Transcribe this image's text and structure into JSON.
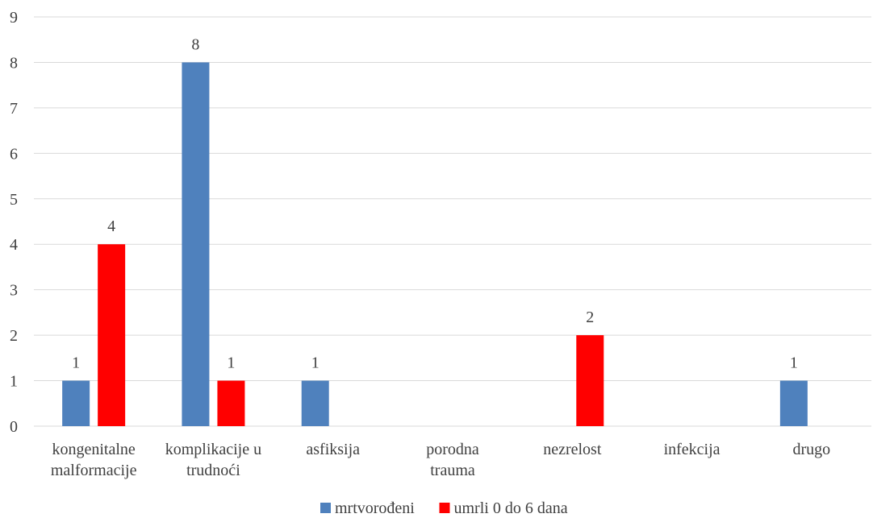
{
  "chart_data": {
    "type": "bar",
    "categories": [
      [
        "kongenitalne",
        "malformacije"
      ],
      [
        "komplikacije u",
        "trudnoći"
      ],
      [
        "asfiksija"
      ],
      [
        "porodna",
        "trauma"
      ],
      [
        "nezrelost"
      ],
      [
        "infekcija"
      ],
      [
        "drugo"
      ]
    ],
    "series": [
      {
        "name": "mrtvorođeni",
        "color": "#4f81bd",
        "values": [
          1,
          8,
          1,
          null,
          null,
          null,
          1
        ]
      },
      {
        "name": "umrli 0 do 6 dana",
        "color": "#ff0000",
        "values": [
          4,
          1,
          null,
          null,
          2,
          null,
          null
        ]
      }
    ],
    "yticks": [
      "0",
      "1",
      "2",
      "3",
      "4",
      "5",
      "6",
      "7",
      "8",
      "9"
    ],
    "ylim": [
      0,
      9
    ],
    "grid": true,
    "legend_position": "bottom"
  }
}
